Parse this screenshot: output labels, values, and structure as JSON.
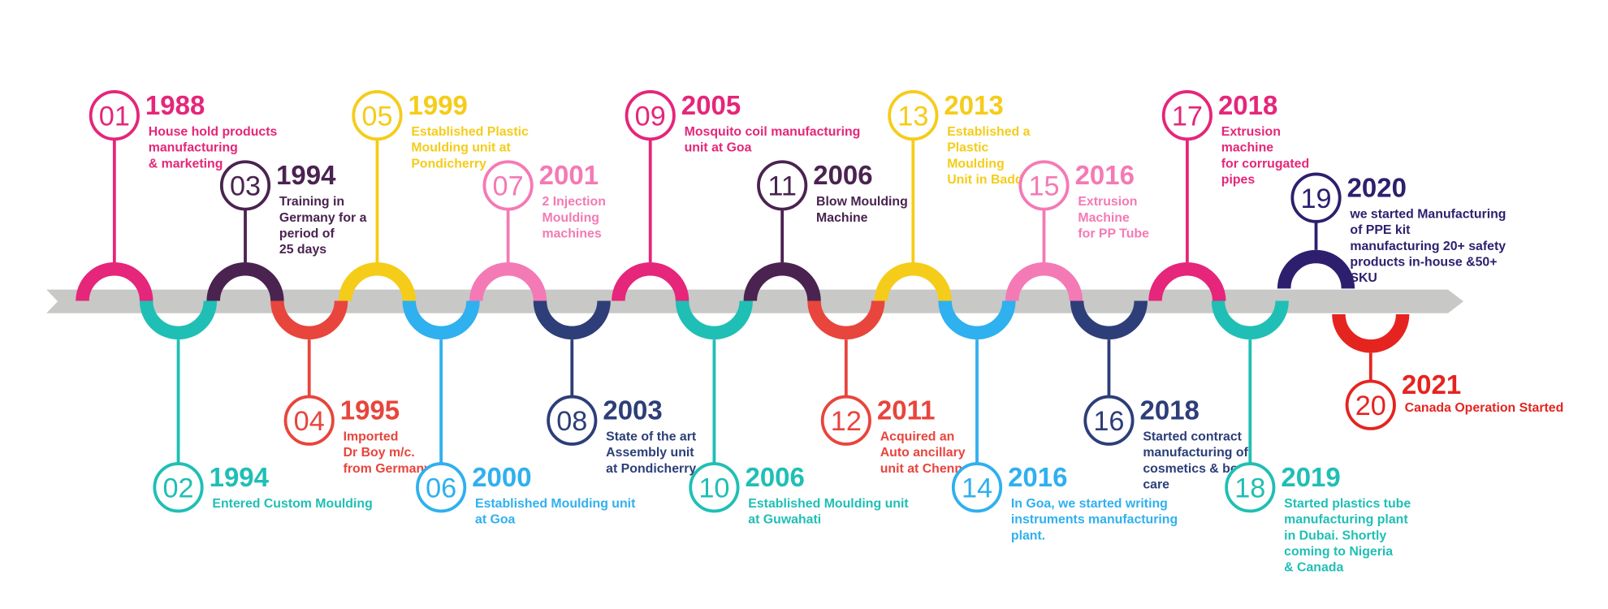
{
  "milestones": [
    {
      "number": "01",
      "year": "1988",
      "color": "#e5267a",
      "description": [
        "House hold products",
        "manufacturing",
        "& marketing"
      ]
    },
    {
      "number": "02",
      "year": "1994",
      "color": "#1fbfb5",
      "description": [
        "Entered Custom Moulding"
      ]
    },
    {
      "number": "03",
      "year": "1994",
      "color": "#4a2350",
      "description": [
        "Training in",
        "Germany for a",
        "period of",
        "25 days"
      ]
    },
    {
      "number": "04",
      "year": "1995",
      "color": "#e8453c",
      "description": [
        "Imported",
        "Dr Boy m/c.",
        "from Germany"
      ]
    },
    {
      "number": "05",
      "year": "1999",
      "color": "#f5cc1a",
      "description": [
        "Established Plastic",
        "Moulding unit  at",
        "Pondicherry"
      ]
    },
    {
      "number": "06",
      "year": "2000",
      "color": "#2fb0ef",
      "description": [
        "Established Moulding unit",
        "at Goa"
      ]
    },
    {
      "number": "07",
      "year": "2001",
      "color": "#f47ab5",
      "description": [
        "2 Injection",
        "Moulding",
        "machines"
      ]
    },
    {
      "number": "08",
      "year": "2003",
      "color": "#2d3e78",
      "description": [
        "State of the art",
        "Assembly unit",
        "at Pondicherry"
      ]
    },
    {
      "number": "09",
      "year": "2005",
      "color": "#e5267a",
      "description": [
        "Mosquito coil manufacturing",
        "unit at Goa"
      ]
    },
    {
      "number": "10",
      "year": "2006",
      "color": "#1fbfb5",
      "description": [
        "Established Moulding unit",
        "at Guwahati"
      ]
    },
    {
      "number": "11",
      "year": "2006",
      "color": "#4a2350",
      "description": [
        "Blow Moulding",
        "Machine"
      ]
    },
    {
      "number": "12",
      "year": "2011",
      "color": "#e8453c",
      "description": [
        "Acquired an",
        "Auto ancillary",
        "unit at Chennai"
      ]
    },
    {
      "number": "13",
      "year": "2013",
      "color": "#f5cc1a",
      "description": [
        "Established a",
        "Plastic",
        "Moulding",
        "Unit in Baddi"
      ]
    },
    {
      "number": "14",
      "year": "2016",
      "color": "#2fb0ef",
      "description": [
        "In Goa, we started writing",
        "instruments manufacturing",
        "plant."
      ]
    },
    {
      "number": "15",
      "year": "2016",
      "color": "#f47ab5",
      "description": [
        "Extrusion",
        "Machine",
        "for PP Tube"
      ]
    },
    {
      "number": "16",
      "year": "2018",
      "color": "#2d3e78",
      "description": [
        "Started contract",
        "manufacturing of",
        "cosmetics & body",
        "care"
      ]
    },
    {
      "number": "17",
      "year": "2018",
      "color": "#e5267a",
      "description": [
        "Extrusion",
        "machine",
        "for corrugated",
        "pipes"
      ]
    },
    {
      "number": "18",
      "year": "2019",
      "color": "#1fbfb5",
      "description": [
        "Started plastics tube",
        "manufacturing plant",
        "in Dubai. Shortly",
        "coming to Nigeria",
        "& Canada"
      ]
    },
    {
      "number": "19",
      "year": "2020",
      "color": "#2e1f6e",
      "description": [
        "we started Manufacturing",
        "of PPE kit",
        "manufacturing 20+ safety",
        "products in-house &50+",
        "SKU"
      ]
    },
    {
      "number": "20",
      "year": "2021",
      "color": "#e52420",
      "description": [
        "Canada Operation Started"
      ]
    }
  ]
}
